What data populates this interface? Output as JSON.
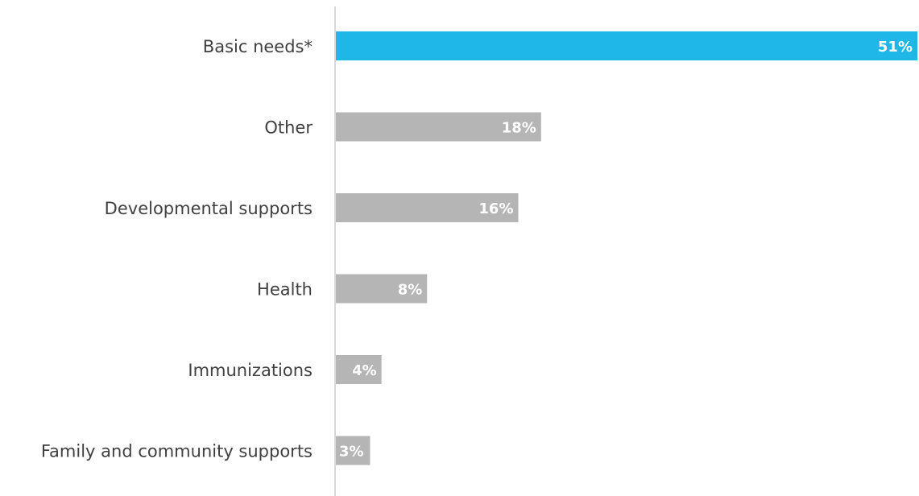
{
  "chart_data": {
    "type": "bar",
    "orientation": "horizontal",
    "categories": [
      "Basic needs*",
      "Other",
      "Developmental supports",
      "Health",
      "Immunizations",
      "Family and community supports"
    ],
    "values": [
      51,
      18,
      16,
      8,
      4,
      3
    ],
    "value_labels": [
      "51%",
      "18%",
      "16%",
      "8%",
      "4%",
      "3%"
    ],
    "xlim": [
      0,
      51
    ],
    "grid": false,
    "legend": "none",
    "colors": {
      "highlight": "#1fb8e6",
      "default": "#b5b5b5",
      "axis": "#d9d9d9",
      "category_text": "#404040",
      "value_text": "#ffffff"
    }
  }
}
